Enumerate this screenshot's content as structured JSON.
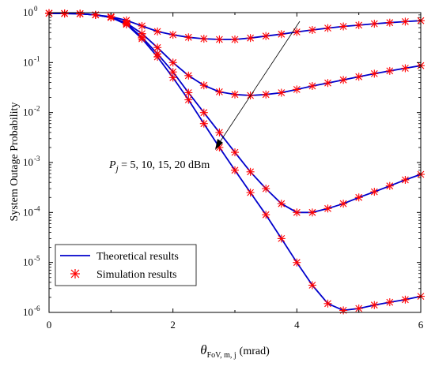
{
  "chart_data": {
    "type": "line",
    "ylabel": "System Outage Probability",
    "xlabel": {
      "symbol": "θ",
      "subscript": "FoV, m, j",
      "unit": "(mrad)"
    },
    "xlim": [
      0,
      6
    ],
    "ylim": [
      1e-06,
      1
    ],
    "y_scale": "log",
    "x_ticks": [
      "0",
      "2",
      "4",
      "6"
    ],
    "y_ticks": [
      {
        "base": "10",
        "exp": "0"
      },
      {
        "base": "10",
        "exp": "-1"
      },
      {
        "base": "10",
        "exp": "-2"
      },
      {
        "base": "10",
        "exp": "-3"
      },
      {
        "base": "10",
        "exp": "-4"
      },
      {
        "base": "10",
        "exp": "-5"
      },
      {
        "base": "10",
        "exp": "-6"
      }
    ],
    "annotation": {
      "var": "P",
      "sub": "j",
      "rest": " = 5, 10, 15, 20 dBm"
    },
    "legend": {
      "position": "bottom-left",
      "theory_label": "Theoretical results",
      "sim_label": "Simulation results"
    },
    "colors": {
      "theory": "#0000cc",
      "sim": "#ff0000",
      "axis": "#000000"
    },
    "x": [
      0,
      0.25,
      0.5,
      0.75,
      1.0,
      1.25,
      1.5,
      1.75,
      2.0,
      2.25,
      2.5,
      2.75,
      3.0,
      3.25,
      3.5,
      3.75,
      4.0,
      4.25,
      4.5,
      4.75,
      5.0,
      5.25,
      5.5,
      5.75,
      6.0
    ],
    "series": [
      {
        "values": [
          0.97,
          0.96,
          0.95,
          0.9,
          0.83,
          0.7,
          0.54,
          0.42,
          0.36,
          0.32,
          0.3,
          0.29,
          0.29,
          0.31,
          0.34,
          0.37,
          0.41,
          0.45,
          0.49,
          0.53,
          0.56,
          0.6,
          0.63,
          0.66,
          0.69
        ]
      },
      {
        "values": [
          0.97,
          0.96,
          0.95,
          0.9,
          0.81,
          0.62,
          0.38,
          0.2,
          0.1,
          0.055,
          0.035,
          0.026,
          0.023,
          0.022,
          0.023,
          0.025,
          0.029,
          0.034,
          0.039,
          0.045,
          0.052,
          0.06,
          0.068,
          0.077,
          0.087
        ]
      },
      {
        "values": [
          0.97,
          0.96,
          0.95,
          0.9,
          0.8,
          0.6,
          0.32,
          0.15,
          0.065,
          0.025,
          0.01,
          0.004,
          0.0016,
          0.00065,
          0.0003,
          0.00015,
          0.0001,
          0.0001,
          0.00012,
          0.00015,
          0.0002,
          0.00026,
          0.00034,
          0.00045,
          0.00058
        ]
      },
      {
        "values": [
          0.97,
          0.96,
          0.95,
          0.9,
          0.8,
          0.58,
          0.3,
          0.13,
          0.05,
          0.018,
          0.006,
          0.002,
          0.0007,
          0.00025,
          9e-05,
          3e-05,
          1e-05,
          3.5e-06,
          1.5e-06,
          1.1e-06,
          1.2e-06,
          1.4e-06,
          1.6e-06,
          1.8e-06,
          2.1e-06
        ]
      }
    ]
  }
}
